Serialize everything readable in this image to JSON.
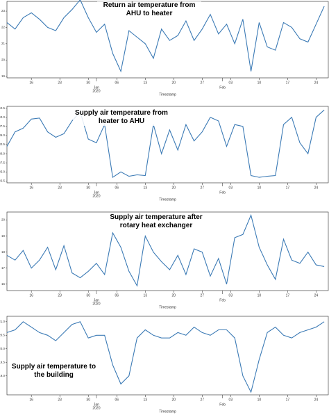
{
  "chart_data": [
    {
      "type": "line",
      "title": "Return air temperature from AHU to heater",
      "xlabel": "Timestamp",
      "color": "#3b7ab5",
      "x": [
        "2019-12-10",
        "2019-12-12",
        "2019-12-14",
        "2019-12-16",
        "2019-12-18",
        "2019-12-20",
        "2019-12-22",
        "2019-12-24",
        "2019-12-26",
        "2019-12-28",
        "2019-12-30",
        "2020-01-01",
        "2020-01-03",
        "2020-01-05",
        "2020-01-07",
        "2020-01-09",
        "2020-01-11",
        "2020-01-13",
        "2020-01-15",
        "2020-01-17",
        "2020-01-19",
        "2020-01-21",
        "2020-01-23",
        "2020-01-25",
        "2020-01-27",
        "2020-01-29",
        "2020-01-31",
        "2020-02-02",
        "2020-02-04",
        "2020-02-06",
        "2020-02-08",
        "2020-02-10",
        "2020-02-12",
        "2020-02-14",
        "2020-02-16",
        "2020-02-18",
        "2020-02-20",
        "2020-02-22",
        "2020-02-24",
        "2020-02-26"
      ],
      "values": [
        22.3,
        21.9,
        22.6,
        22.9,
        22.5,
        22.0,
        21.8,
        22.6,
        23.1,
        23.7,
        22.6,
        21.7,
        22.2,
        20.4,
        19.3,
        21.8,
        21.4,
        21.0,
        20.1,
        21.9,
        21.2,
        21.5,
        22.4,
        21.2,
        21.9,
        22.8,
        21.6,
        22.2,
        21.0,
        22.5,
        19.3,
        22.3,
        20.8,
        20.6,
        22.3,
        22.0,
        21.3,
        21.1,
        22.2,
        23.3
      ],
      "xlim": [
        "2019-12-10",
        "2020-02-27"
      ],
      "xticks": [
        {
          "value": "2019-12-16",
          "label": "16"
        },
        {
          "value": "2019-12-23",
          "label": "23"
        },
        {
          "value": "2019-12-30",
          "label": "30"
        },
        {
          "value": "2020-01-06",
          "label": "06"
        },
        {
          "value": "2020-01-13",
          "label": "13"
        },
        {
          "value": "2020-01-20",
          "label": "20"
        },
        {
          "value": "2020-01-27",
          "label": "27"
        },
        {
          "value": "2020-02-03",
          "label": "03"
        },
        {
          "value": "2020-02-10",
          "label": "10"
        },
        {
          "value": "2020-02-17",
          "label": "17"
        },
        {
          "value": "2020-02-24",
          "label": "24"
        }
      ],
      "month_ticks": [
        {
          "value": "2020-01-01",
          "label": "Jan"
        },
        {
          "value": "2020-02-01",
          "label": "Feb"
        }
      ],
      "year_label": "2020",
      "ylim": [
        18.9,
        23.6
      ],
      "yticks": [
        19,
        20,
        21,
        22,
        23
      ]
    },
    {
      "type": "line",
      "title": "Supply air temperature from heater to AHU",
      "xlabel": "Timestamp",
      "color": "#3b7ab5",
      "x": [
        "2019-12-10",
        "2019-12-12",
        "2019-12-14",
        "2019-12-16",
        "2019-12-18",
        "2019-12-20",
        "2019-12-22",
        "2019-12-24",
        "2019-12-26",
        "2019-12-28",
        "2019-12-30",
        "2020-01-01",
        "2020-01-03",
        "2020-01-05",
        "2020-01-07",
        "2020-01-09",
        "2020-01-11",
        "2020-01-13",
        "2020-01-15",
        "2020-01-17",
        "2020-01-19",
        "2020-01-21",
        "2020-01-23",
        "2020-01-25",
        "2020-01-27",
        "2020-01-29",
        "2020-01-31",
        "2020-02-02",
        "2020-02-04",
        "2020-02-06",
        "2020-02-08",
        "2020-02-10",
        "2020-02-12",
        "2020-02-14",
        "2020-02-16",
        "2020-02-18",
        "2020-02-20",
        "2020-02-22",
        "2020-02-24",
        "2020-02-26"
      ],
      "values": [
        32,
        36,
        37,
        39.5,
        39.8,
        36,
        34.5,
        35.5,
        39,
        41.5,
        34,
        33,
        38,
        23.5,
        25,
        23.8,
        24.2,
        24,
        38,
        30,
        36.5,
        31,
        38,
        33.5,
        36,
        40,
        39,
        32,
        38,
        37.5,
        24,
        23.5,
        23.8,
        24,
        38,
        40,
        33,
        30,
        40,
        42
      ],
      "xlim": [
        "2019-12-10",
        "2020-02-27"
      ],
      "xticks": [
        {
          "value": "2019-12-16",
          "label": "16"
        },
        {
          "value": "2019-12-23",
          "label": "23"
        },
        {
          "value": "2019-12-30",
          "label": "30"
        },
        {
          "value": "2020-01-06",
          "label": "06"
        },
        {
          "value": "2020-01-13",
          "label": "13"
        },
        {
          "value": "2020-01-20",
          "label": "20"
        },
        {
          "value": "2020-01-27",
          "label": "27"
        },
        {
          "value": "2020-02-03",
          "label": "03"
        },
        {
          "value": "2020-02-10",
          "label": "10"
        },
        {
          "value": "2020-02-17",
          "label": "17"
        },
        {
          "value": "2020-02-24",
          "label": "24"
        }
      ],
      "month_ticks": [
        {
          "value": "2020-01-01",
          "label": "Jan"
        },
        {
          "value": "2020-02-01",
          "label": "Feb"
        }
      ],
      "year_label": "2020",
      "ylim": [
        22,
        43
      ],
      "yticks": [
        22.5,
        {
          "value": 25,
          "label": "25.0"
        },
        27.5,
        {
          "value": 30,
          "label": "30.0"
        },
        32.5,
        {
          "value": 35,
          "label": "35.0"
        },
        37.5,
        {
          "value": 40,
          "label": "40.0"
        },
        42.5
      ]
    },
    {
      "type": "line",
      "title": "Supply air temperature after rotary heat exchanger",
      "xlabel": "Timestamp",
      "color": "#3b7ab5",
      "x": [
        "2019-12-10",
        "2019-12-12",
        "2019-12-14",
        "2019-12-16",
        "2019-12-18",
        "2019-12-20",
        "2019-12-22",
        "2019-12-24",
        "2019-12-26",
        "2019-12-28",
        "2019-12-30",
        "2020-01-01",
        "2020-01-03",
        "2020-01-05",
        "2020-01-07",
        "2020-01-09",
        "2020-01-11",
        "2020-01-13",
        "2020-01-15",
        "2020-01-17",
        "2020-01-19",
        "2020-01-21",
        "2020-01-23",
        "2020-01-25",
        "2020-01-27",
        "2020-01-29",
        "2020-01-31",
        "2020-02-02",
        "2020-02-04",
        "2020-02-06",
        "2020-02-08",
        "2020-02-10",
        "2020-02-12",
        "2020-02-14",
        "2020-02-16",
        "2020-02-18",
        "2020-02-20",
        "2020-02-22",
        "2020-02-24",
        "2020-02-26"
      ],
      "values": [
        17.8,
        17.5,
        18.1,
        17.0,
        17.5,
        18.3,
        16.9,
        18.4,
        16.7,
        16.4,
        16.8,
        17.3,
        16.6,
        19.2,
        18.3,
        16.8,
        15.9,
        19.0,
        18.0,
        17.4,
        16.9,
        17.8,
        16.6,
        18.2,
        18.0,
        16.5,
        17.6,
        16.0,
        18.9,
        19.1,
        20.3,
        18.3,
        17.2,
        16.3,
        18.8,
        17.5,
        17.3,
        18.0,
        17.2,
        17.1
      ],
      "xlim": [
        "2019-12-10",
        "2020-02-27"
      ],
      "xticks": [
        {
          "value": "2019-12-16",
          "label": "16"
        },
        {
          "value": "2019-12-23",
          "label": "23"
        },
        {
          "value": "2019-12-30",
          "label": "30"
        },
        {
          "value": "2020-01-06",
          "label": "06"
        },
        {
          "value": "2020-01-13",
          "label": "13"
        },
        {
          "value": "2020-01-20",
          "label": "20"
        },
        {
          "value": "2020-01-27",
          "label": "27"
        },
        {
          "value": "2020-02-03",
          "label": "03"
        },
        {
          "value": "2020-02-10",
          "label": "10"
        },
        {
          "value": "2020-02-17",
          "label": "17"
        },
        {
          "value": "2020-02-24",
          "label": "24"
        }
      ],
      "month_ticks": [
        {
          "value": "2020-01-01",
          "label": "Jan"
        },
        {
          "value": "2020-02-01",
          "label": "Feb"
        }
      ],
      "year_label": "2020",
      "ylim": [
        15.6,
        20.5
      ],
      "yticks": [
        16,
        17,
        18,
        19,
        20
      ]
    },
    {
      "type": "line",
      "title": "Supply air temperature to the building",
      "xlabel": "Timestamp",
      "color": "#3b7ab5",
      "x": [
        "2019-12-10",
        "2019-12-12",
        "2019-12-14",
        "2019-12-16",
        "2019-12-18",
        "2019-12-20",
        "2019-12-22",
        "2019-12-24",
        "2019-12-26",
        "2019-12-28",
        "2019-12-30",
        "2020-01-01",
        "2020-01-03",
        "2020-01-05",
        "2020-01-07",
        "2020-01-09",
        "2020-01-11",
        "2020-01-13",
        "2020-01-15",
        "2020-01-17",
        "2020-01-19",
        "2020-01-21",
        "2020-01-23",
        "2020-01-25",
        "2020-01-27",
        "2020-01-29",
        "2020-01-31",
        "2020-02-02",
        "2020-02-04",
        "2020-02-06",
        "2020-02-08",
        "2020-02-10",
        "2020-02-12",
        "2020-02-14",
        "2020-02-16",
        "2020-02-18",
        "2020-02-20",
        "2020-02-22",
        "2020-02-24",
        "2020-02-26"
      ],
      "values": [
        20.6,
        20.7,
        21.0,
        20.8,
        20.6,
        20.5,
        20.3,
        20.6,
        20.9,
        21.0,
        20.4,
        20.5,
        20.5,
        19.4,
        18.7,
        19.0,
        20.4,
        20.7,
        20.5,
        20.4,
        20.4,
        20.6,
        20.5,
        20.8,
        20.6,
        20.5,
        20.7,
        20.7,
        20.4,
        19.0,
        18.4,
        19.6,
        20.6,
        20.8,
        20.5,
        20.4,
        20.6,
        20.7,
        20.8,
        21.0
      ],
      "xlim": [
        "2019-12-10",
        "2020-02-27"
      ],
      "xticks": [
        {
          "value": "2019-12-16",
          "label": "16"
        },
        {
          "value": "2019-12-23",
          "label": "23"
        },
        {
          "value": "2019-12-30",
          "label": "30"
        },
        {
          "value": "2020-01-06",
          "label": "06"
        },
        {
          "value": "2020-01-13",
          "label": "13"
        },
        {
          "value": "2020-01-20",
          "label": "20"
        },
        {
          "value": "2020-01-27",
          "label": "27"
        },
        {
          "value": "2020-02-03",
          "label": "03"
        },
        {
          "value": "2020-02-10",
          "label": "10"
        },
        {
          "value": "2020-02-17",
          "label": "17"
        },
        {
          "value": "2020-02-24",
          "label": "24"
        }
      ],
      "month_ticks": [
        {
          "value": "2020-01-01",
          "label": "Jan"
        },
        {
          "value": "2020-02-01",
          "label": "Feb"
        }
      ],
      "year_label": "2020",
      "ylim": [
        18.3,
        21.2
      ],
      "yticks": [
        {
          "value": 19,
          "label": "19.0"
        },
        19.5,
        {
          "value": 20,
          "label": "20.0"
        },
        20.5,
        {
          "value": 21,
          "label": "21.0"
        }
      ]
    }
  ]
}
